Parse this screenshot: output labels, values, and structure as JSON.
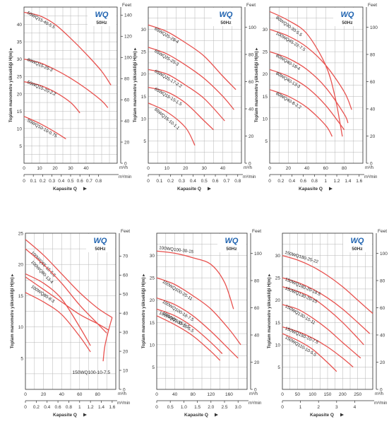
{
  "brand": "WQ",
  "frequency": "50Hz",
  "colors": {
    "curve": "#e8524f",
    "grid": "#b5b5b5",
    "axis": "#333333",
    "brand": "#1f63b0"
  },
  "chart_data": [
    {
      "type": "line",
      "x_label": "Kapasite Q",
      "y_label": "Toplam manometre yüksekliği H(m)",
      "y2_label": "Feet",
      "x_unit": "m³/h",
      "x2_unit": "m³/min",
      "xlim": [
        0,
        60
      ],
      "ylim": [
        0,
        45
      ],
      "y2lim": [
        0,
        147.6
      ],
      "x2lim": [
        0,
        1.0
      ],
      "x_ticks": [
        0,
        10,
        20,
        30,
        40
      ],
      "y_ticks": [
        0,
        5,
        10,
        15,
        20,
        25,
        30,
        35,
        40
      ],
      "y2_ticks": [
        0,
        20,
        40,
        60,
        80,
        100,
        120,
        140
      ],
      "x2_ticks": [
        0,
        0.1,
        0.2,
        0.3,
        0.4,
        0.5,
        0.6,
        0.7,
        0.8
      ],
      "x2_tick_labels": [
        "0",
        "0.1",
        "0.2",
        "0.3",
        "0.4",
        "0.5",
        "0.6",
        "0.7",
        "0.8"
      ],
      "series": [
        {
          "name": "50WQ15-40-5.5",
          "x": [
            0,
            10,
            20,
            30,
            40,
            50,
            56
          ],
          "y": [
            43.5,
            42.5,
            40,
            36,
            31.5,
            26.5,
            22.5
          ]
        },
        {
          "name": "80WQ15-25-3",
          "x": [
            0,
            10,
            20,
            30,
            40,
            50,
            54
          ],
          "y": [
            30,
            29,
            27,
            24.5,
            21.5,
            18,
            16
          ]
        },
        {
          "name": "50WQ15-20-2.2",
          "x": [
            0,
            10,
            20,
            30,
            36
          ],
          "y": [
            23.5,
            22.5,
            20.5,
            17.5,
            14.5
          ]
        },
        {
          "name": "50WQ10-10-0.75",
          "x": [
            0,
            10,
            20,
            27
          ],
          "y": [
            13.5,
            11.5,
            9,
            7
          ]
        }
      ]
    },
    {
      "type": "line",
      "x_label": "Kapasite Q",
      "y_label": "Toplam manometre yüksekliği H(m)",
      "y2_label": "Feet",
      "x_unit": "m³/h",
      "x2_unit": "m³/min",
      "xlim": [
        0,
        50
      ],
      "ylim": [
        0,
        35
      ],
      "y2lim": [
        0,
        114.8
      ],
      "x2lim": [
        0,
        0.8333
      ],
      "x_ticks": [
        0,
        10,
        20,
        30,
        40
      ],
      "y_ticks": [
        0,
        5,
        10,
        15,
        20,
        25,
        30
      ],
      "y2_ticks": [
        0,
        20,
        40,
        60,
        80,
        100
      ],
      "x2_ticks": [
        0,
        0.1,
        0.2,
        0.3,
        0.4,
        0.5,
        0.6,
        0.7,
        0.8
      ],
      "x2_tick_labels": [
        "0",
        "0.1",
        "0.2",
        "0.3",
        "0.4",
        "0.5",
        "0.6",
        "0.7",
        "0.8"
      ],
      "series": [
        {
          "name": "65WQ25-28-4",
          "x": [
            0,
            10,
            20,
            30,
            40,
            47
          ],
          "y": [
            31,
            29.5,
            27,
            24,
            19.5,
            16.5
          ]
        },
        {
          "name": "65WQ25-25-3",
          "x": [
            0,
            10,
            20,
            30,
            40,
            46
          ],
          "y": [
            26,
            24.5,
            22,
            19,
            15,
            12
          ]
        },
        {
          "name": "65WQ25-17-2.2",
          "x": [
            0,
            10,
            20,
            30,
            41
          ],
          "y": [
            21,
            20,
            17.5,
            14.5,
            9.5
          ]
        },
        {
          "name": "65WQ15-15-1.5",
          "x": [
            0,
            10,
            20,
            30,
            35
          ],
          "y": [
            17,
            16,
            13.5,
            9.5,
            7.5
          ]
        },
        {
          "name": "65WQ15-10-1.1",
          "x": [
            0,
            10,
            20,
            25
          ],
          "y": [
            13.5,
            11.5,
            8,
            4
          ]
        }
      ]
    },
    {
      "type": "line",
      "x_label": "Kapasite Q",
      "y_label": "Toplam manometre yüksekliği H(m)",
      "y2_label": "Feet",
      "x_unit": "m³/h",
      "x2_unit": "m³/min",
      "xlim": [
        0,
        100
      ],
      "ylim": [
        0,
        35
      ],
      "y2lim": [
        0,
        114.8
      ],
      "x2lim": [
        0,
        1.6667
      ],
      "x_ticks": [
        0,
        20,
        40,
        60,
        80
      ],
      "y_ticks": [
        0,
        5,
        10,
        15,
        20,
        25,
        30
      ],
      "y2_ticks": [
        0,
        20,
        40,
        60,
        80,
        100
      ],
      "x2_ticks": [
        0,
        0.2,
        0.4,
        0.6,
        0.8,
        1.0,
        1.2,
        1.4,
        1.6
      ],
      "x2_tick_labels": [
        "0",
        "0.2",
        "0.4",
        "0.6",
        "0.8",
        "1",
        "1.2",
        "1.4",
        "1.6"
      ],
      "series": [
        {
          "name": "80WQ30-30-5.5",
          "x": [
            0,
            20,
            40,
            60,
            70,
            78
          ],
          "y": [
            34,
            32,
            29,
            22,
            15,
            6
          ]
        },
        {
          "name": "100WQ45-22-7.5",
          "x": [
            0,
            20,
            40,
            60,
            80,
            88
          ],
          "y": [
            30,
            28.5,
            26,
            22,
            16,
            12
          ]
        },
        {
          "name": "80WQ40-18-4",
          "x": [
            0,
            20,
            40,
            60,
            80,
            84
          ],
          "y": [
            25,
            23.5,
            21,
            17,
            11,
            9
          ]
        },
        {
          "name": "80WQ40-13-3",
          "x": [
            0,
            20,
            40,
            60,
            80
          ],
          "y": [
            21,
            19.5,
            17,
            13,
            7.5
          ]
        },
        {
          "name": "80WQ40-8-2.2",
          "x": [
            0,
            20,
            40,
            60,
            67
          ],
          "y": [
            16.5,
            15,
            12.5,
            8.5,
            6
          ]
        }
      ]
    },
    {
      "type": "line",
      "x_label": "Kapasite Q",
      "y_label": "Toplam manometre yüksekliği H(m)",
      "y2_label": "Feet",
      "x_unit": "m³/h",
      "x2_unit": "m³/min",
      "xlim": [
        0,
        100
      ],
      "ylim": [
        0,
        25
      ],
      "y2lim": [
        0,
        82
      ],
      "x2lim": [
        0,
        1.6667
      ],
      "x_ticks": [
        0,
        20,
        40,
        60,
        80
      ],
      "y_ticks": [
        0,
        5,
        10,
        15,
        20,
        25
      ],
      "y2_ticks": [
        0,
        10,
        20,
        30,
        40,
        50,
        60,
        70
      ],
      "x2_ticks": [
        0,
        0.2,
        0.4,
        0.6,
        0.8,
        1.0,
        1.2,
        1.4,
        1.6
      ],
      "x2_tick_labels": [
        "0",
        "0.2",
        "0.4",
        "0.6",
        "0.8",
        "1",
        "1.2",
        "1.4",
        "1.6"
      ],
      "series": [
        {
          "name": "100WQ65-15-5.5",
          "x": [
            0,
            20,
            40,
            60,
            80,
            96
          ],
          "y": [
            24,
            21.5,
            18.5,
            15.5,
            13,
            11.5
          ]
        },
        {
          "name": "100WQ80-13-4",
          "x": [
            0,
            20,
            40,
            60,
            80,
            90
          ],
          "y": [
            22.5,
            20,
            17,
            13.5,
            10.5,
            9
          ]
        },
        {
          "name": "100WQ80-8-3",
          "x": [
            0,
            20,
            40,
            60,
            80,
            92
          ],
          "y": [
            18,
            16,
            14,
            12,
            10.5,
            9.5
          ]
        },
        {
          "name": "150WQ100-10-7.5",
          "x": [
            0,
            20,
            40,
            60,
            72
          ],
          "y": [
            15.5,
            14,
            12,
            8.5,
            6
          ]
        },
        {
          "name": "",
          "x": [
            0,
            20,
            40,
            60,
            72
          ],
          "y": [
            18.5,
            17,
            14.5,
            10,
            7
          ]
        },
        {
          "name": "",
          "x": [
            86,
            88,
            93,
            96
          ],
          "y": [
            4.5,
            7,
            10,
            11.5
          ]
        }
      ]
    },
    {
      "type": "line",
      "x_label": "Kapasite Q",
      "y_label": "Toplam manometre yüksekliği H(m)",
      "y2_label": "Feet",
      "x_unit": "m³/h",
      "x2_unit": "m³/min",
      "xlim": [
        0,
        200
      ],
      "ylim": [
        0,
        35
      ],
      "y2lim": [
        0,
        114.8
      ],
      "x2lim": [
        0,
        3.3333
      ],
      "x_ticks": [
        0,
        40,
        80,
        120,
        160
      ],
      "y_ticks": [
        0,
        5,
        10,
        15,
        20,
        25,
        30
      ],
      "y2_ticks": [
        0,
        20,
        40,
        60,
        80,
        100
      ],
      "x2_ticks": [
        0,
        0.5,
        1.0,
        1.5,
        2.0,
        2.5,
        3.0
      ],
      "x2_tick_labels": [
        "0",
        "0.5",
        "1.0",
        "1.5",
        "2.0",
        "2.5",
        "3.0"
      ],
      "series": [
        {
          "name": "100WQ100-30-15",
          "x": [
            0,
            40,
            80,
            120,
            150,
            170
          ],
          "y": [
            31,
            30.5,
            29.5,
            28,
            24,
            18
          ]
        },
        {
          "name": "100WQ100-25-11",
          "x": [
            0,
            40,
            80,
            120,
            160,
            186
          ],
          "y": [
            25,
            23.5,
            21,
            18,
            13.5,
            10
          ]
        },
        {
          "name": "100WQ100-18-7.5",
          "x": [
            0,
            40,
            80,
            120,
            160,
            180
          ],
          "y": [
            20.5,
            19,
            16.5,
            13,
            9,
            7
          ]
        },
        {
          "name": "100WQ100-15-5.5",
          "x": [
            0,
            40,
            80,
            120,
            145
          ],
          "y": [
            18,
            16.5,
            14,
            10.5,
            8
          ]
        },
        {
          "name": "100WQ80-15-5.5",
          "x": [
            0,
            40,
            80,
            120,
            140
          ],
          "y": [
            16.5,
            14.5,
            12,
            8.5,
            6.5
          ]
        }
      ]
    },
    {
      "type": "line",
      "x_label": "Kapasite Q",
      "y_label": "Toplam manometre yüksekliği H(m)",
      "y2_label": "Feet",
      "x_unit": "m³/h",
      "x2_unit": "m³/min",
      "xlim": [
        0,
        300
      ],
      "ylim": [
        0,
        35
      ],
      "y2lim": [
        0,
        114.8
      ],
      "x2lim": [
        0,
        5.0
      ],
      "x_ticks": [
        0,
        50,
        100,
        150,
        200,
        250
      ],
      "y_ticks": [
        0,
        5,
        10,
        15,
        20,
        25,
        30
      ],
      "y2_ticks": [
        0,
        20,
        40,
        60,
        80,
        100
      ],
      "x2_ticks": [
        0,
        1,
        2,
        3,
        4
      ],
      "x2_tick_labels": [
        "0",
        "1",
        "2",
        "3",
        "4"
      ],
      "series": [
        {
          "name": "150WQ180-25-22",
          "x": [
            0,
            50,
            100,
            150,
            200,
            250,
            300
          ],
          "y": [
            30,
            29,
            27.5,
            25.5,
            23,
            20,
            17
          ]
        },
        {
          "name": "150WQ180-20-18.5",
          "x": [
            0,
            50,
            100,
            150,
            200,
            250,
            290
          ],
          "y": [
            25,
            24,
            22.5,
            20.5,
            18,
            15,
            12.5
          ]
        },
        {
          "name": "150WQ130-20-15",
          "x": [
            0,
            50,
            100,
            150,
            200,
            250,
            270
          ],
          "y": [
            23,
            22,
            20.5,
            18,
            15,
            11.5,
            10
          ]
        },
        {
          "name": "150WQ130-15-11",
          "x": [
            0,
            50,
            100,
            150,
            200,
            260
          ],
          "y": [
            19,
            18,
            16,
            13.5,
            10.5,
            7
          ]
        },
        {
          "name": "150WQ150-10-7.5",
          "x": [
            0,
            50,
            100,
            150,
            200,
            235
          ],
          "y": [
            14,
            13,
            11.5,
            9.5,
            7,
            5
          ]
        },
        {
          "name": "150WQ110-10-5.5",
          "x": [
            0,
            50,
            100,
            150,
            180
          ],
          "y": [
            12.5,
            11,
            9,
            6,
            4
          ]
        }
      ]
    }
  ]
}
